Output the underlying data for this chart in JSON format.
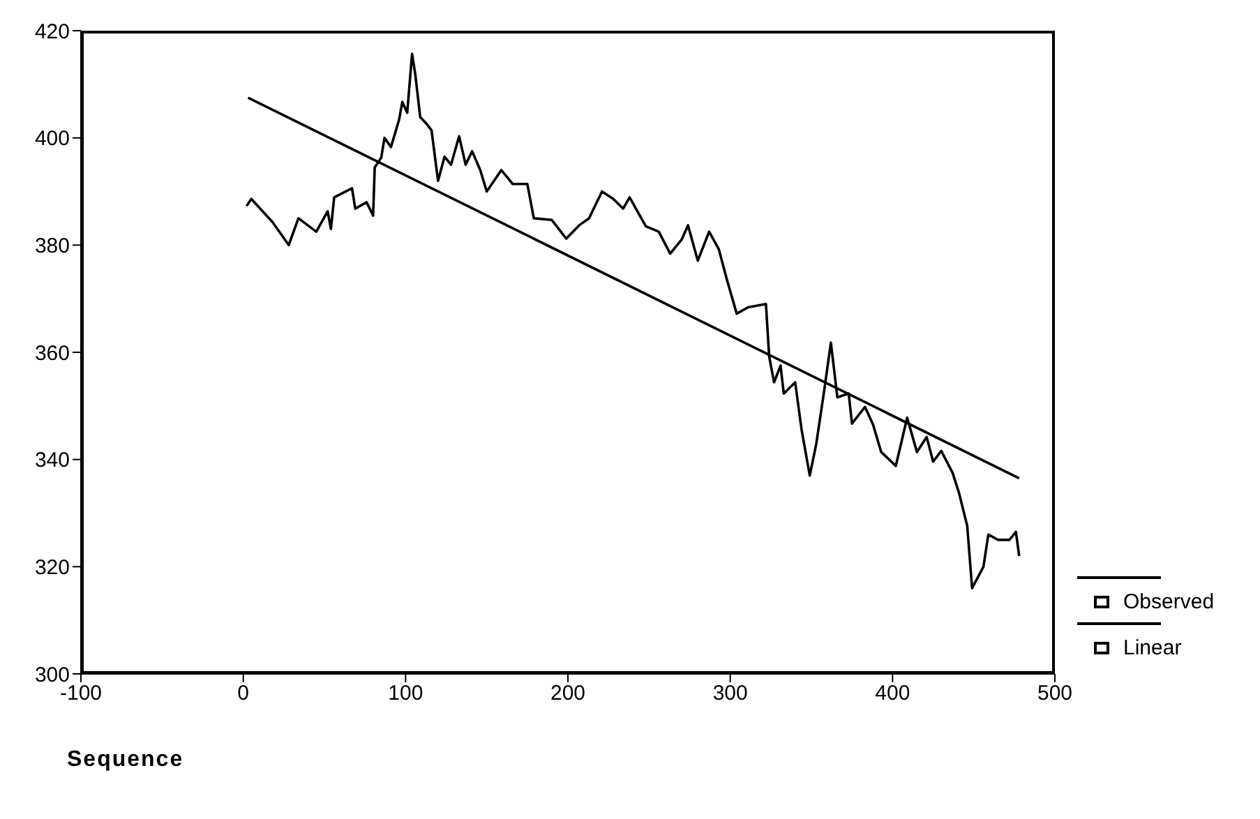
{
  "chart_data": {
    "type": "line",
    "xlabel": "Sequence",
    "xlim": [
      -100,
      500
    ],
    "xticks": [
      -100,
      0,
      100,
      200,
      300,
      400,
      500
    ],
    "ylim": [
      300,
      420
    ],
    "yticks": [
      300,
      320,
      340,
      360,
      380,
      400,
      420
    ],
    "grid": false,
    "legend": "bottom right",
    "marker": "none",
    "line_style": "solid",
    "series": [
      {
        "name": "Observed",
        "color": "#000000",
        "x": [
          2,
          5,
          18,
          28,
          34,
          45,
          52,
          54,
          56,
          67,
          69,
          76,
          80,
          81,
          85,
          87,
          91,
          96,
          98,
          101,
          104,
          106,
          109,
          113,
          116,
          120,
          124,
          128,
          133,
          137,
          141,
          146,
          150,
          159,
          166,
          175,
          179,
          190,
          199,
          207,
          213,
          221,
          228,
          234,
          238,
          248,
          256,
          263,
          270,
          274,
          280,
          287,
          293,
          298,
          304,
          311,
          322,
          324,
          327,
          331,
          333,
          340,
          344,
          349,
          353,
          358,
          362,
          366,
          373,
          375,
          383,
          388,
          393,
          402,
          409,
          415,
          421,
          425,
          430,
          437,
          441,
          446,
          449,
          456,
          459,
          465,
          472,
          476,
          478
        ],
        "values": [
          387.3,
          388.6,
          384.3,
          380,
          385,
          382.5,
          386.3,
          383,
          388.9,
          390.6,
          386.8,
          388,
          385.5,
          394.5,
          396.3,
          400,
          398.3,
          403.4,
          406.7,
          404.7,
          415.7,
          411.8,
          403.9,
          402.6,
          401.4,
          392,
          396.5,
          395,
          400.3,
          395,
          397.5,
          394,
          390,
          394,
          391.4,
          391.4,
          385,
          384.7,
          381.2,
          383.7,
          385,
          390,
          388.6,
          386.8,
          388.9,
          383.5,
          382.5,
          378.4,
          381,
          383.7,
          377.1,
          382.5,
          379.2,
          373.5,
          367.2,
          368.4,
          369,
          359.2,
          354.4,
          357.5,
          352.3,
          354.4,
          345.5,
          337,
          342.9,
          353.1,
          361.8,
          351.6,
          352.3,
          346.7,
          349.8,
          346.5,
          341.4,
          338.8,
          347.8,
          341.4,
          344.2,
          339.6,
          341.6,
          337.5,
          333.7,
          327.6,
          316,
          320,
          326,
          325,
          325,
          326.5,
          322
        ]
      },
      {
        "name": "Linear",
        "type": "line",
        "color": "#000000",
        "x": [
          3,
          478
        ],
        "values": [
          407.5,
          336.5
        ]
      }
    ]
  }
}
